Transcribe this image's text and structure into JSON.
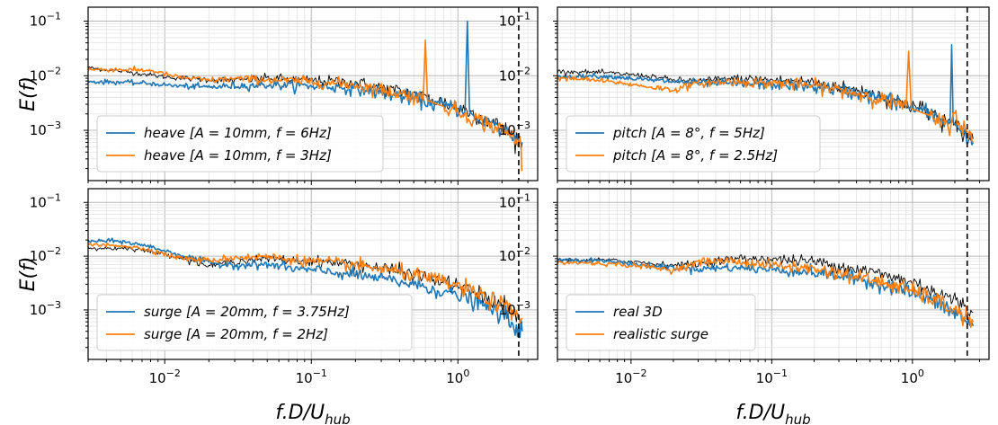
{
  "chart_data": [
    {
      "type": "line",
      "panel": "top-left",
      "xscale": "log",
      "yscale": "log",
      "xlim": [
        0.003,
        3.5
      ],
      "ylim": [
        0.00012,
        0.18
      ],
      "ylabel": "E(f)",
      "xlabel": "",
      "xticks": [
        "10^-2",
        "10^-1",
        "10^0"
      ],
      "yticks": [
        "10^-3",
        "10^-2",
        "10^-1"
      ],
      "grid": true,
      "legend": "lower-left",
      "cutoff_x": 2.6,
      "series": [
        {
          "name": "heave [A = 10mm, f = 6Hz]",
          "color": "#1f77b4",
          "width": 1.6,
          "x": [
            0.003,
            0.005,
            0.008,
            0.012,
            0.02,
            0.03,
            0.05,
            0.08,
            0.12,
            0.2,
            0.3,
            0.5,
            0.8,
            1.12,
            1.16,
            1.2,
            1.5,
            2.0,
            2.6,
            2.75
          ],
          "y": [
            0.0078,
            0.0076,
            0.0072,
            0.0065,
            0.0062,
            0.0065,
            0.0068,
            0.0066,
            0.0064,
            0.0058,
            0.0048,
            0.0038,
            0.0028,
            0.0024,
            0.1,
            0.0022,
            0.0015,
            0.001,
            0.0007,
            0.0006
          ]
        },
        {
          "name": "heave [A = 10mm, f = 3Hz]",
          "color": "#ff7f0e",
          "width": 1.6,
          "x": [
            0.003,
            0.005,
            0.008,
            0.012,
            0.02,
            0.03,
            0.05,
            0.08,
            0.12,
            0.2,
            0.3,
            0.5,
            0.58,
            0.6,
            0.62,
            0.8,
            1.2,
            1.6,
            2.0,
            2.5,
            2.7,
            2.75
          ],
          "y": [
            0.013,
            0.013,
            0.0125,
            0.0095,
            0.0082,
            0.0088,
            0.0085,
            0.008,
            0.0075,
            0.0068,
            0.0055,
            0.0042,
            0.0036,
            0.045,
            0.0035,
            0.0028,
            0.0018,
            0.0013,
            0.001,
            0.0007,
            0.0005,
            0.00018
          ]
        },
        {
          "name": "",
          "color": "#000000",
          "width": 0.9,
          "x": [
            0.003,
            0.006,
            0.01,
            0.015,
            0.02,
            0.03,
            0.05,
            0.08,
            0.12,
            0.2,
            0.3,
            0.5,
            0.8,
            1.2,
            2.0,
            2.75
          ],
          "y": [
            0.014,
            0.0115,
            0.0095,
            0.0088,
            0.0085,
            0.0082,
            0.009,
            0.0085,
            0.008,
            0.0075,
            0.006,
            0.0046,
            0.0032,
            0.0022,
            0.0011,
            0.0006
          ]
        }
      ]
    },
    {
      "type": "line",
      "panel": "top-right",
      "xscale": "log",
      "yscale": "log",
      "xlim": [
        0.003,
        3.5
      ],
      "ylim": [
        0.00012,
        0.18
      ],
      "ylabel": "",
      "xlabel": "",
      "xticks": [
        "10^-2",
        "10^-1",
        "10^0"
      ],
      "yticks": [
        "10^-3",
        "10^-2",
        "10^-1"
      ],
      "grid": true,
      "legend": "lower-left",
      "cutoff_x": 2.45,
      "series": [
        {
          "name": "pitch [A = 8°, f = 5Hz]",
          "color": "#1f77b4",
          "width": 1.6,
          "x": [
            0.003,
            0.005,
            0.008,
            0.012,
            0.02,
            0.03,
            0.05,
            0.08,
            0.12,
            0.2,
            0.3,
            0.5,
            0.8,
            1.2,
            1.5,
            1.85,
            1.9,
            1.95,
            2.3,
            2.7
          ],
          "y": [
            0.0095,
            0.01,
            0.0095,
            0.0085,
            0.0078,
            0.0075,
            0.0072,
            0.007,
            0.0068,
            0.0062,
            0.0055,
            0.0043,
            0.0032,
            0.0022,
            0.0017,
            0.0014,
            0.037,
            0.0014,
            0.0009,
            0.0006
          ]
        },
        {
          "name": "pitch [A = 8°, f = 2.5Hz]",
          "color": "#ff7f0e",
          "width": 1.6,
          "x": [
            0.003,
            0.005,
            0.008,
            0.012,
            0.02,
            0.03,
            0.05,
            0.08,
            0.12,
            0.2,
            0.3,
            0.5,
            0.8,
            0.9,
            0.94,
            0.98,
            1.3,
            1.8,
            2.0,
            2.5,
            2.7
          ],
          "y": [
            0.009,
            0.0085,
            0.0075,
            0.0065,
            0.0055,
            0.0072,
            0.0078,
            0.0075,
            0.0072,
            0.0066,
            0.0055,
            0.0042,
            0.003,
            0.0026,
            0.028,
            0.0025,
            0.0018,
            0.0012,
            0.002,
            0.0008,
            0.0006
          ]
        },
        {
          "name": "",
          "color": "#000000",
          "width": 0.9,
          "x": [
            0.003,
            0.006,
            0.01,
            0.015,
            0.02,
            0.03,
            0.05,
            0.08,
            0.12,
            0.2,
            0.3,
            0.5,
            0.8,
            1.2,
            2.0,
            2.7
          ],
          "y": [
            0.012,
            0.0115,
            0.0105,
            0.0095,
            0.0082,
            0.008,
            0.0088,
            0.0086,
            0.0082,
            0.0076,
            0.0062,
            0.0048,
            0.0034,
            0.0024,
            0.0012,
            0.0007
          ]
        }
      ]
    },
    {
      "type": "line",
      "panel": "bottom-left",
      "xscale": "log",
      "yscale": "log",
      "xlim": [
        0.003,
        3.5
      ],
      "ylim": [
        0.00012,
        0.18
      ],
      "ylabel": "E(f)",
      "xlabel": "f.D/U_hub",
      "xticks": [
        "10^-2",
        "10^-1",
        "10^0"
      ],
      "yticks": [
        "10^-3",
        "10^-2",
        "10^-1"
      ],
      "grid": true,
      "legend": "lower-left",
      "cutoff_x": 2.6,
      "series": [
        {
          "name": "surge [A = 20mm, f = 3.75Hz]",
          "color": "#1f77b4",
          "width": 1.6,
          "x": [
            0.003,
            0.005,
            0.008,
            0.012,
            0.02,
            0.03,
            0.05,
            0.08,
            0.12,
            0.2,
            0.3,
            0.5,
            0.8,
            1.2,
            2.0,
            2.75
          ],
          "y": [
            0.019,
            0.019,
            0.015,
            0.011,
            0.0075,
            0.0068,
            0.007,
            0.0058,
            0.0052,
            0.0045,
            0.0038,
            0.003,
            0.0022,
            0.0016,
            0.0008,
            0.0004
          ]
        },
        {
          "name": "surge [A = 20mm, f = 2Hz]",
          "color": "#ff7f0e",
          "width": 1.6,
          "x": [
            0.003,
            0.005,
            0.008,
            0.012,
            0.02,
            0.03,
            0.05,
            0.08,
            0.12,
            0.2,
            0.3,
            0.5,
            0.8,
            1.2,
            2.0,
            2.75
          ],
          "y": [
            0.016,
            0.016,
            0.013,
            0.0095,
            0.0082,
            0.0095,
            0.0098,
            0.0085,
            0.0078,
            0.0068,
            0.0058,
            0.0045,
            0.0033,
            0.0023,
            0.0012,
            0.0007
          ]
        },
        {
          "name": "",
          "color": "#000000",
          "width": 0.9,
          "x": [
            0.003,
            0.006,
            0.01,
            0.015,
            0.02,
            0.03,
            0.05,
            0.08,
            0.12,
            0.2,
            0.3,
            0.5,
            0.8,
            1.2,
            2.0,
            2.75
          ],
          "y": [
            0.014,
            0.014,
            0.011,
            0.0085,
            0.0065,
            0.008,
            0.009,
            0.0082,
            0.0078,
            0.0072,
            0.006,
            0.0046,
            0.0033,
            0.0023,
            0.0012,
            0.0006
          ]
        }
      ]
    },
    {
      "type": "line",
      "panel": "bottom-right",
      "xscale": "log",
      "yscale": "log",
      "xlim": [
        0.003,
        3.5
      ],
      "ylim": [
        0.00012,
        0.18
      ],
      "ylabel": "",
      "xlabel": "f.D/U_hub",
      "xticks": [
        "10^-2",
        "10^-1",
        "10^0"
      ],
      "yticks": [
        "10^-3",
        "10^-2",
        "10^-1"
      ],
      "grid": true,
      "legend": "lower-left",
      "cutoff_x": 2.45,
      "series": [
        {
          "name": "real 3D",
          "color": "#1f77b4",
          "width": 1.6,
          "x": [
            0.003,
            0.005,
            0.008,
            0.012,
            0.02,
            0.03,
            0.05,
            0.08,
            0.12,
            0.2,
            0.3,
            0.5,
            0.8,
            1.2,
            2.0,
            2.7
          ],
          "y": [
            0.0085,
            0.0085,
            0.0078,
            0.0068,
            0.0062,
            0.0058,
            0.0062,
            0.0058,
            0.0055,
            0.005,
            0.0043,
            0.0034,
            0.0025,
            0.0018,
            0.0009,
            0.0005
          ]
        },
        {
          "name": "realistic surge",
          "color": "#ff7f0e",
          "width": 1.6,
          "x": [
            0.003,
            0.005,
            0.008,
            0.012,
            0.02,
            0.03,
            0.05,
            0.08,
            0.12,
            0.2,
            0.3,
            0.5,
            0.8,
            1.2,
            2.0,
            2.7
          ],
          "y": [
            0.0075,
            0.0075,
            0.007,
            0.0065,
            0.0055,
            0.0078,
            0.0082,
            0.0072,
            0.0065,
            0.0058,
            0.0048,
            0.0037,
            0.0027,
            0.0019,
            0.001,
            0.0006
          ]
        },
        {
          "name": "",
          "color": "#000000",
          "width": 0.9,
          "x": [
            0.003,
            0.006,
            0.01,
            0.015,
            0.02,
            0.03,
            0.05,
            0.08,
            0.12,
            0.2,
            0.3,
            0.5,
            0.8,
            1.2,
            2.0,
            2.7
          ],
          "y": [
            0.0085,
            0.0085,
            0.008,
            0.0072,
            0.0068,
            0.0072,
            0.0088,
            0.009,
            0.0086,
            0.008,
            0.0066,
            0.0052,
            0.0038,
            0.0028,
            0.0015,
            0.0009
          ]
        }
      ]
    }
  ]
}
